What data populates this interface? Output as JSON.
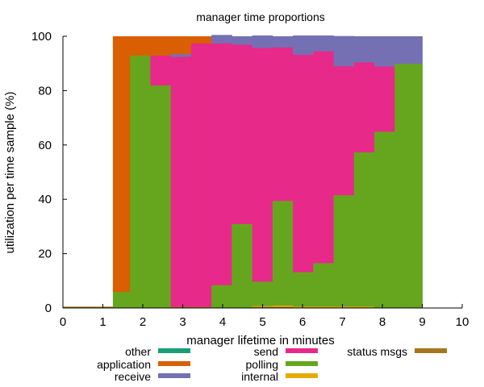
{
  "chart_data": {
    "type": "area",
    "stacked": true,
    "title": "manager time proportions",
    "xlabel": "manager lifetime in minutes",
    "ylabel": "utilization per time sample (%)",
    "xlim": [
      0,
      10
    ],
    "ylim": [
      0,
      100
    ],
    "xticks": [
      "0",
      "1",
      "2",
      "3",
      "4",
      "5",
      "6",
      "7",
      "8",
      "9",
      "10"
    ],
    "yticks": [
      "0",
      "20",
      "40",
      "60",
      "80",
      "100"
    ],
    "grid": false,
    "legend_position": "bottom",
    "bins": [
      [
        0.0,
        1.25
      ],
      [
        1.25,
        1.68
      ],
      [
        1.68,
        2.19
      ],
      [
        2.19,
        2.7
      ],
      [
        2.7,
        3.21
      ],
      [
        3.21,
        3.72
      ],
      [
        3.72,
        4.23
      ],
      [
        4.23,
        4.74
      ],
      [
        4.74,
        5.25
      ],
      [
        5.25,
        5.76
      ],
      [
        5.76,
        6.27
      ],
      [
        6.27,
        6.78
      ],
      [
        6.78,
        7.29
      ],
      [
        7.29,
        7.8
      ],
      [
        7.8,
        8.31
      ],
      [
        8.31,
        9.0
      ]
    ],
    "series": [
      {
        "name": "other",
        "color": "#1b9e77",
        "values": [
          0,
          0,
          0,
          0,
          0,
          0,
          0,
          0,
          0,
          0,
          0,
          0,
          0,
          0,
          0,
          0
        ]
      },
      {
        "name": "status msgs",
        "color": "#a6761d",
        "values": [
          0.5,
          0,
          0,
          0,
          0.5,
          0.5,
          0,
          0,
          0.5,
          0.5,
          0.3,
          0.3,
          0.3,
          0.3,
          0,
          0
        ]
      },
      {
        "name": "internal",
        "color": "#e6ab02",
        "values": [
          0,
          0,
          0,
          0,
          0,
          0,
          0,
          0,
          0.3,
          0.5,
          0.3,
          0.3,
          0.3,
          0.3,
          0,
          0
        ]
      },
      {
        "name": "polling",
        "color": "#66a61e",
        "values": [
          0,
          6,
          93,
          82,
          0,
          0,
          8.5,
          31,
          9,
          38.5,
          12.7,
          16,
          41,
          56.8,
          65,
          90
        ]
      },
      {
        "name": "send",
        "color": "#e7298a",
        "values": [
          0,
          0,
          0,
          11,
          92,
          97,
          89,
          66,
          86,
          56.5,
          80,
          78,
          47.5,
          33.1,
          24,
          0
        ]
      },
      {
        "name": "receive",
        "color": "#7570b3",
        "values": [
          0,
          0,
          0,
          0,
          1,
          0,
          3,
          3,
          4.5,
          4,
          7,
          5.7,
          11,
          9.5,
          11,
          10
        ]
      },
      {
        "name": "application",
        "color": "#d95f02",
        "values": [
          0,
          94,
          7,
          7,
          6.5,
          2.5,
          0,
          0,
          0,
          0,
          0,
          0,
          0,
          0,
          0,
          0
        ]
      }
    ],
    "legend": [
      {
        "name": "other",
        "color": "#1b9e77"
      },
      {
        "name": "application",
        "color": "#d95f02"
      },
      {
        "name": "receive",
        "color": "#7570b3"
      },
      {
        "name": "send",
        "color": "#e7298a"
      },
      {
        "name": "polling",
        "color": "#66a61e"
      },
      {
        "name": "internal",
        "color": "#e6ab02"
      },
      {
        "name": "status msgs",
        "color": "#a6761d"
      }
    ]
  }
}
